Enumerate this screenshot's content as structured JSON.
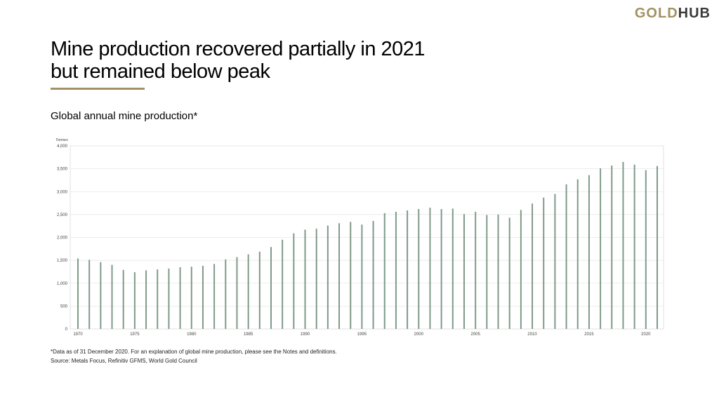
{
  "brand": {
    "logo_gold": "GOLD",
    "logo_hub": "HUB"
  },
  "title": "Mine production recovered partially in 2021 but remained below peak",
  "subtitle": "Global annual mine production*",
  "footnote": "*Data as of 31 December 2020. For an explanation of global mine production, please see the Notes and definitions.",
  "source": "Source: Metals Focus, Refinitiv GFMS, World Gold Council",
  "colors": {
    "bar": "#7f9a89",
    "grid": "#e6e6e6",
    "accent": "#a39161"
  },
  "chart_data": {
    "type": "bar",
    "ylabel": "Tonnes",
    "ylim": [
      0,
      4000
    ],
    "yticks": [
      0,
      500,
      1000,
      1500,
      2000,
      2500,
      3000,
      3500,
      4000
    ],
    "ytick_labels": [
      "0",
      "500",
      "1,000",
      "1,500",
      "2,000",
      "2,500",
      "3,000",
      "3,500",
      "4,000"
    ],
    "xtick_labels": [
      "1970",
      "1975",
      "1980",
      "1985",
      "1990",
      "1995",
      "2000",
      "2005",
      "2010",
      "2015",
      "2020"
    ],
    "grid": true,
    "categories": [
      1970,
      1971,
      1972,
      1973,
      1974,
      1975,
      1976,
      1977,
      1978,
      1979,
      1980,
      1981,
      1982,
      1983,
      1984,
      1985,
      1986,
      1987,
      1988,
      1989,
      1990,
      1991,
      1992,
      1993,
      1994,
      1995,
      1996,
      1997,
      1998,
      1999,
      2000,
      2001,
      2002,
      2003,
      2004,
      2005,
      2006,
      2007,
      2008,
      2009,
      2010,
      2011,
      2012,
      2013,
      2014,
      2015,
      2016,
      2017,
      2018,
      2019,
      2020,
      2021
    ],
    "values": [
      1540,
      1510,
      1460,
      1400,
      1290,
      1240,
      1280,
      1300,
      1320,
      1350,
      1360,
      1380,
      1420,
      1520,
      1570,
      1630,
      1690,
      1790,
      1950,
      2090,
      2170,
      2190,
      2260,
      2310,
      2340,
      2280,
      2360,
      2530,
      2560,
      2590,
      2620,
      2650,
      2620,
      2630,
      2510,
      2560,
      2490,
      2500,
      2430,
      2600,
      2740,
      2870,
      2950,
      3160,
      3270,
      3360,
      3510,
      3570,
      3650,
      3590,
      3470,
      3560
    ]
  }
}
